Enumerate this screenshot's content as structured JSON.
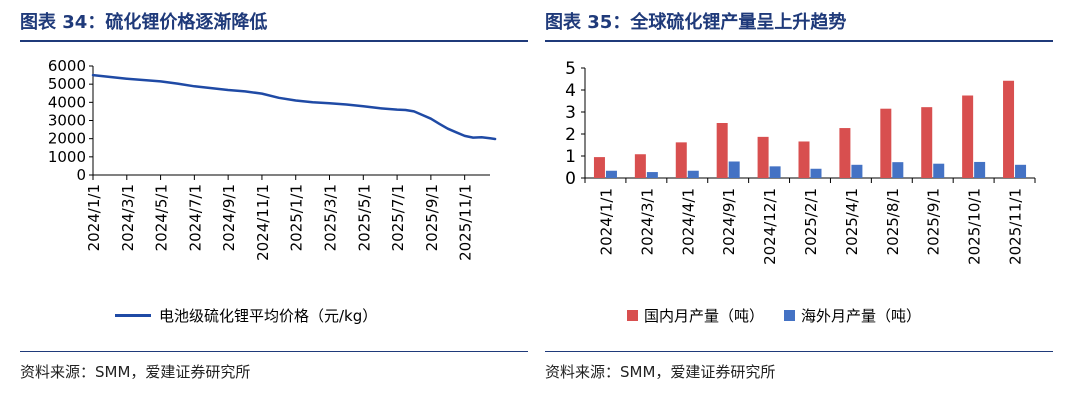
{
  "left_panel": {
    "title": "图表 34：硫化锂价格逐渐降低",
    "source": "资料来源：SMM，爱建证券研究所"
  },
  "right_panel": {
    "title": "图表 35：全球硫化锂产量呈上升趋势",
    "source": "资料来源：SMM，爱建证券研究所"
  },
  "colors": {
    "title_blue": "#1f3a7a",
    "line_blue": "#1f4aa5",
    "bar_red": "#d84f4f",
    "bar_blue": "#4472c4"
  },
  "chart_data": [
    {
      "type": "line",
      "title": "图表 34：硫化锂价格逐渐降低",
      "x_ticks": [
        "2024/1/1",
        "2024/3/1",
        "2024/5/1",
        "2024/7/1",
        "2024/9/1",
        "2024/11/1",
        "2025/1/1",
        "2025/3/1",
        "2025/5/1",
        "2025/7/1",
        "2025/9/1",
        "2025/11/1"
      ],
      "ylim": [
        0,
        6000
      ],
      "y_ticks": [
        0,
        1000,
        2000,
        3000,
        4000,
        5000,
        6000
      ],
      "x_range_months": [
        0,
        23.5
      ],
      "series": [
        {
          "name": "电池级硫化锂平均价格（元/kg）",
          "points_month_value": [
            [
              0,
              5500
            ],
            [
              2,
              5300
            ],
            [
              4,
              5150
            ],
            [
              5,
              5030
            ],
            [
              6,
              4880
            ],
            [
              8,
              4680
            ],
            [
              9,
              4600
            ],
            [
              10,
              4480
            ],
            [
              11,
              4250
            ],
            [
              12,
              4100
            ],
            [
              13,
              4000
            ],
            [
              14,
              3950
            ],
            [
              15,
              3880
            ],
            [
              16,
              3780
            ],
            [
              17,
              3670
            ],
            [
              18,
              3600
            ],
            [
              18.5,
              3580
            ],
            [
              19,
              3500
            ],
            [
              19.5,
              3300
            ],
            [
              20,
              3100
            ],
            [
              20.5,
              2820
            ],
            [
              21,
              2550
            ],
            [
              21.5,
              2350
            ],
            [
              22,
              2150
            ],
            [
              22.5,
              2060
            ],
            [
              23,
              2080
            ],
            [
              23.5,
              2020
            ],
            [
              24,
              1980
            ]
          ]
        }
      ]
    },
    {
      "type": "bar",
      "title": "图表 35：全球硫化锂产量呈上升趋势",
      "categories": [
        "2024/1/1",
        "2024/3/1",
        "2024/4/1",
        "2024/9/1",
        "2024/12/1",
        "2025/2/1",
        "2025/4/1",
        "2025/8/1",
        "2025/9/1",
        "2025/10/1",
        "2025/11/1"
      ],
      "ylim": [
        0,
        5
      ],
      "y_ticks": [
        0,
        1,
        2,
        3,
        4,
        5
      ],
      "series": [
        {
          "name": "国内月产量（吨）",
          "values": [
            0.95,
            1.08,
            1.62,
            2.5,
            1.87,
            1.66,
            2.27,
            3.15,
            3.22,
            3.75,
            4.42
          ]
        },
        {
          "name": "海外月产量（吨）",
          "values": [
            0.33,
            0.27,
            0.33,
            0.75,
            0.53,
            0.42,
            0.6,
            0.72,
            0.65,
            0.73,
            0.6
          ]
        }
      ]
    }
  ]
}
